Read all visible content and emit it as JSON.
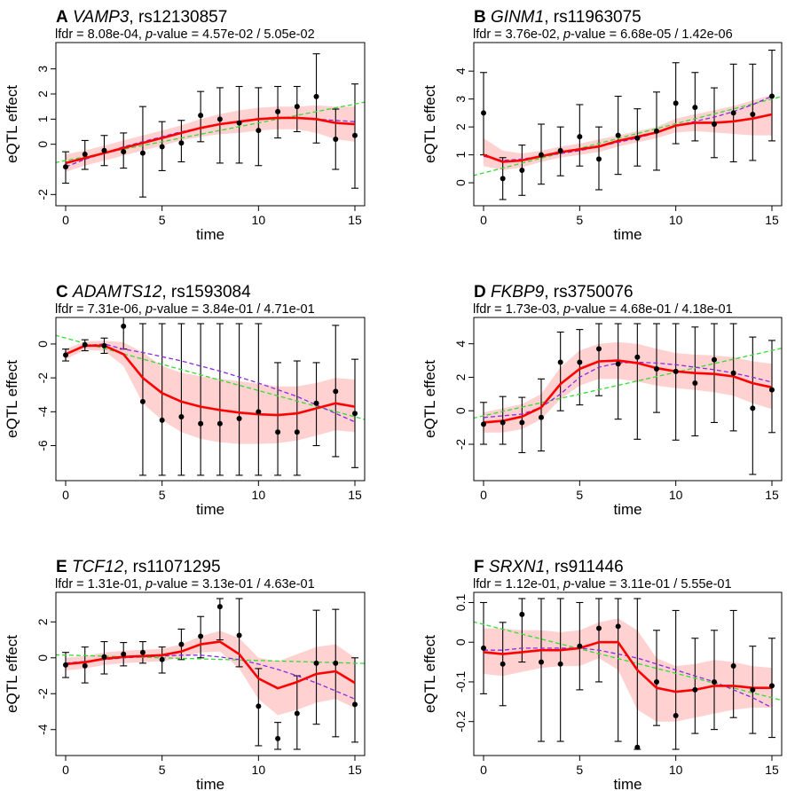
{
  "figure_colors": {
    "smooth": "#ff0000",
    "band": "#ffcccc",
    "linear": "#33dd33",
    "dashed_fit": "#8a2be2",
    "points": "#000000"
  },
  "chart_data": [
    {
      "panel": "A",
      "gene": "VAMP3",
      "snp": "rs12130857",
      "lfdr_label": "lfdr = 8.08e-04, ",
      "p_prefix": "p",
      "p_suffix": "-value = 4.57e-02 / 5.05e-02",
      "type": "scatter",
      "xlabel": "time",
      "ylabel": "eQTL effect",
      "xlim": [
        0,
        15
      ],
      "ylim": [
        -2.2,
        3.8
      ],
      "xticks": [
        0,
        5,
        10,
        15
      ],
      "yticks": [
        -2,
        0,
        1,
        2,
        3
      ],
      "x": [
        0,
        1,
        2,
        3,
        4,
        5,
        6,
        7,
        8,
        9,
        10,
        11,
        12,
        13,
        14,
        15
      ],
      "y": [
        -0.9,
        -0.4,
        -0.25,
        -0.3,
        -0.35,
        -0.1,
        0.05,
        1.15,
        1.0,
        0.85,
        0.55,
        1.3,
        1.5,
        1.9,
        0.2,
        0.35
      ],
      "err_low": [
        -1.55,
        -1.0,
        -0.85,
        -0.95,
        -2.1,
        -1.05,
        -0.7,
        0.1,
        -0.75,
        -0.75,
        -0.85,
        0.25,
        0.5,
        0.05,
        -1.0,
        -1.75
      ],
      "err_high": [
        -0.3,
        0.15,
        0.35,
        0.45,
        1.5,
        0.9,
        0.95,
        2.1,
        2.25,
        2.3,
        2.25,
        2.3,
        2.3,
        3.6,
        1.4,
        2.4
      ],
      "smooth": [
        -0.75,
        -0.55,
        -0.35,
        -0.15,
        0.05,
        0.25,
        0.45,
        0.65,
        0.8,
        0.9,
        1.0,
        1.05,
        1.05,
        1.0,
        0.85,
        0.8
      ],
      "band_low": [
        -1.1,
        -0.85,
        -0.65,
        -0.45,
        -0.25,
        -0.05,
        0.15,
        0.3,
        0.4,
        0.45,
        0.55,
        0.6,
        0.6,
        0.45,
        0.2,
        0.1
      ],
      "band_high": [
        -0.4,
        -0.25,
        -0.05,
        0.15,
        0.35,
        0.55,
        0.75,
        1.0,
        1.2,
        1.35,
        1.45,
        1.5,
        1.5,
        1.55,
        1.5,
        1.5
      ],
      "linear": [
        -0.65,
        1.6
      ],
      "dashed": [
        -0.9,
        -0.6,
        -0.35,
        -0.1,
        0.1,
        0.3,
        0.5,
        0.65,
        0.8,
        0.9,
        1.0,
        1.05,
        1.05,
        1.0,
        0.95,
        0.9
      ]
    },
    {
      "panel": "B",
      "gene": "GINM1",
      "snp": "rs11963075",
      "lfdr_label": "lfdr = 3.76e-02, ",
      "p_prefix": "p",
      "p_suffix": "-value = 6.68e-05 / 1.42e-06",
      "type": "scatter",
      "xlabel": "time",
      "ylabel": "eQTL effect",
      "xlim": [
        0,
        15
      ],
      "ylim": [
        -0.6,
        4.8
      ],
      "xticks": [
        0,
        5,
        10,
        15
      ],
      "yticks": [
        0,
        1,
        2,
        3,
        4
      ],
      "x": [
        0,
        1,
        2,
        3,
        4,
        5,
        6,
        7,
        8,
        9,
        10,
        11,
        12,
        13,
        14,
        15
      ],
      "y": [
        2.5,
        0.15,
        0.45,
        1.0,
        1.15,
        1.65,
        0.85,
        1.7,
        1.6,
        1.85,
        2.85,
        2.7,
        2.1,
        2.5,
        2.45,
        3.1
      ],
      "err_low": [
        1.0,
        -0.6,
        -0.45,
        -0.05,
        0.25,
        0.6,
        -0.25,
        0.3,
        0.6,
        0.45,
        1.4,
        1.5,
        0.9,
        0.75,
        0.8,
        1.5
      ],
      "err_high": [
        3.95,
        0.9,
        1.35,
        2.1,
        2.0,
        2.8,
        2.0,
        3.1,
        2.65,
        3.25,
        4.3,
        3.95,
        3.4,
        4.25,
        4.25,
        4.75
      ],
      "smooth": [
        1.0,
        0.75,
        0.8,
        0.95,
        1.1,
        1.2,
        1.3,
        1.5,
        1.65,
        1.8,
        2.05,
        2.15,
        2.15,
        2.2,
        2.3,
        2.45
      ],
      "band_low": [
        0.6,
        0.45,
        0.55,
        0.75,
        0.9,
        1.0,
        1.1,
        1.3,
        1.45,
        1.6,
        1.8,
        1.85,
        1.8,
        1.75,
        1.7,
        1.7
      ],
      "band_high": [
        1.6,
        1.15,
        1.05,
        1.15,
        1.3,
        1.4,
        1.55,
        1.7,
        1.85,
        2.0,
        2.3,
        2.45,
        2.6,
        2.75,
        2.95,
        3.15
      ],
      "linear": [
        0.35,
        3.0
      ],
      "dashed": [
        0.95,
        0.8,
        0.85,
        0.95,
        1.05,
        1.15,
        1.3,
        1.45,
        1.6,
        1.8,
        2.05,
        2.2,
        2.35,
        2.55,
        2.8,
        3.1
      ]
    },
    {
      "panel": "C",
      "gene": "ADAMTS12",
      "snp": "rs1593084",
      "lfdr_label": "lfdr = 7.31e-06, ",
      "p_prefix": "p",
      "p_suffix": "-value = 3.84e-01 / 4.71e-01",
      "type": "scatter",
      "xlabel": "time",
      "ylabel": "eQTL effect",
      "xlim": [
        0,
        15
      ],
      "ylim": [
        -7.7,
        1.2
      ],
      "xticks": [
        0,
        5,
        10,
        15
      ],
      "yticks": [
        -6,
        -4,
        -2,
        0
      ],
      "x": [
        0,
        1,
        2,
        3,
        4,
        5,
        6,
        7,
        8,
        9,
        10,
        11,
        12,
        13,
        14,
        15
      ],
      "y": [
        -0.65,
        -0.05,
        -0.1,
        1.05,
        -3.4,
        -4.5,
        -4.3,
        -4.7,
        -4.7,
        -4.4,
        -4.0,
        -5.2,
        -5.2,
        -3.5,
        -2.8,
        -4.1
      ],
      "err_low": [
        -1.0,
        -0.4,
        -0.55,
        -0.3,
        -7.75,
        -7.75,
        -7.75,
        -7.75,
        -7.75,
        -7.75,
        -7.75,
        -7.75,
        -7.75,
        -6.0,
        -6.65,
        -7.3
      ],
      "err_high": [
        -0.3,
        0.25,
        0.35,
        2.4,
        1.2,
        1.2,
        1.2,
        1.2,
        1.2,
        1.2,
        1.2,
        -1.1,
        -1.0,
        -1.1,
        1.1,
        -0.9
      ],
      "smooth": [
        -0.6,
        -0.1,
        -0.1,
        -0.6,
        -2.0,
        -2.9,
        -3.4,
        -3.7,
        -3.9,
        -4.05,
        -4.15,
        -4.2,
        -4.1,
        -3.8,
        -3.5,
        -3.7
      ],
      "band_low": [
        -0.9,
        -0.35,
        -0.4,
        -1.3,
        -3.5,
        -4.5,
        -5.2,
        -5.6,
        -5.8,
        -5.9,
        -5.9,
        -5.85,
        -5.7,
        -5.4,
        -5.1,
        -5.2
      ],
      "band_high": [
        -0.3,
        0.15,
        0.2,
        0.1,
        -0.5,
        -1.3,
        -1.7,
        -1.9,
        -2.05,
        -2.2,
        -2.35,
        -2.5,
        -2.5,
        -2.3,
        -2.0,
        -2.1
      ],
      "linear": [
        0.35,
        -4.3
      ],
      "dashed": [
        -0.6,
        -0.1,
        0.0,
        -0.3,
        -0.5,
        -0.75,
        -1.0,
        -1.3,
        -1.6,
        -1.95,
        -2.3,
        -2.7,
        -3.1,
        -3.6,
        -4.1,
        -4.6
      ]
    },
    {
      "panel": "D",
      "gene": "FKBP9",
      "snp": "rs3750076",
      "lfdr_label": "lfdr = 1.73e-03, ",
      "p_prefix": "p",
      "p_suffix": "-value = 4.68e-01 / 4.18e-01",
      "type": "scatter",
      "xlabel": "time",
      "ylabel": "eQTL effect",
      "xlim": [
        0,
        15
      ],
      "ylim": [
        -3.8,
        5.2
      ],
      "xticks": [
        0,
        5,
        10,
        15
      ],
      "yticks": [
        -2,
        0,
        2,
        4
      ],
      "x": [
        0,
        1,
        2,
        3,
        4,
        5,
        6,
        7,
        8,
        9,
        10,
        11,
        12,
        13,
        14,
        15
      ],
      "y": [
        -0.8,
        -0.7,
        -0.7,
        -0.4,
        2.9,
        2.9,
        3.7,
        2.8,
        3.2,
        2.5,
        2.35,
        1.65,
        3.05,
        2.25,
        0.15,
        1.25
      ],
      "err_low": [
        -2.0,
        -2.0,
        -2.5,
        -2.4,
        0.0,
        0.35,
        0.9,
        -0.5,
        -1.7,
        -0.1,
        -1.75,
        -1.5,
        -0.7,
        -1.2,
        -3.8,
        -1.3
      ],
      "err_high": [
        0.5,
        0.85,
        0.8,
        1.9,
        4.7,
        4.85,
        5.2,
        5.2,
        5.2,
        5.2,
        5.2,
        5.0,
        5.2,
        5.2,
        4.4,
        4.2
      ],
      "smooth": [
        -0.7,
        -0.6,
        -0.35,
        0.2,
        1.6,
        2.5,
        2.95,
        3.0,
        2.85,
        2.55,
        2.35,
        2.25,
        2.2,
        2.05,
        1.65,
        1.4
      ],
      "band_low": [
        -1.3,
        -1.3,
        -1.1,
        -0.5,
        0.7,
        1.5,
        1.9,
        1.9,
        1.75,
        1.5,
        1.35,
        1.25,
        1.1,
        0.9,
        0.45,
        0.1
      ],
      "band_high": [
        -0.1,
        0.15,
        0.4,
        1.0,
        2.6,
        3.6,
        4.0,
        4.1,
        4.0,
        3.7,
        3.45,
        3.35,
        3.3,
        3.2,
        2.95,
        2.8
      ],
      "linear": [
        -0.3,
        3.6
      ],
      "dashed": [
        -0.4,
        -0.3,
        -0.2,
        0.2,
        1.0,
        2.0,
        2.6,
        2.85,
        2.9,
        2.85,
        2.75,
        2.6,
        2.45,
        2.25,
        2.0,
        1.7
      ]
    },
    {
      "panel": "E",
      "gene": "TCF12",
      "snp": "rs11071295",
      "lfdr_label": "lfdr = 1.31e-01, ",
      "p_prefix": "p",
      "p_suffix": "-value = 3.13e-01 / 4.63e-01",
      "type": "scatter",
      "xlabel": "time",
      "ylabel": "eQTL effect",
      "xlim": [
        0,
        15
      ],
      "ylim": [
        -5.1,
        3.3
      ],
      "xticks": [
        0,
        5,
        10,
        15
      ],
      "yticks": [
        -4,
        -2,
        0,
        2
      ],
      "x": [
        0,
        1,
        2,
        3,
        4,
        5,
        6,
        7,
        8,
        9,
        10,
        11,
        12,
        13,
        14,
        15
      ],
      "y": [
        -0.4,
        -0.45,
        0.05,
        0.2,
        0.3,
        -0.1,
        0.75,
        1.2,
        2.85,
        1.25,
        -2.7,
        -4.5,
        -3.1,
        -0.3,
        -0.3,
        -2.6
      ],
      "err_low": [
        -1.1,
        -1.4,
        -0.9,
        -0.45,
        -0.3,
        -0.85,
        -0.1,
        0.0,
        1.0,
        -0.5,
        -4.9,
        -5.1,
        -5.1,
        -3.7,
        -4.4,
        -4.7
      ],
      "err_high": [
        0.3,
        0.6,
        0.9,
        0.85,
        0.9,
        0.6,
        1.6,
        2.3,
        3.3,
        3.3,
        -0.6,
        -3.6,
        -1.0,
        2.65,
        2.7,
        0.0
      ],
      "smooth": [
        -0.35,
        -0.25,
        -0.05,
        0.05,
        0.1,
        0.15,
        0.35,
        0.75,
        0.9,
        0.2,
        -1.15,
        -1.7,
        -1.35,
        -0.9,
        -0.75,
        -1.4
      ],
      "band_low": [
        -0.7,
        -0.6,
        -0.4,
        -0.3,
        -0.25,
        -0.2,
        0.0,
        0.3,
        0.35,
        -0.6,
        -2.3,
        -3.2,
        -2.9,
        -2.5,
        -2.3,
        -2.8
      ],
      "band_high": [
        0.0,
        0.1,
        0.3,
        0.4,
        0.45,
        0.5,
        0.75,
        1.2,
        1.5,
        1.1,
        0.0,
        -0.2,
        0.2,
        0.6,
        0.75,
        0.0
      ],
      "linear": [
        0.15,
        -0.3
      ],
      "dashed": [
        -0.3,
        -0.2,
        -0.1,
        0.0,
        0.05,
        0.1,
        0.15,
        0.15,
        0.05,
        -0.1,
        -0.35,
        -0.65,
        -1.0,
        -1.4,
        -1.85,
        -2.3
      ]
    },
    {
      "panel": "F",
      "gene": "SRXN1",
      "snp": "rs911446",
      "lfdr_label": "lfdr = 1.12e-01, ",
      "p_prefix": "p",
      "p_suffix": "-value = 3.11e-01 / 5.55e-01",
      "type": "scatter",
      "xlabel": "time",
      "ylabel": "eQTL effect",
      "xlim": [
        0,
        15
      ],
      "ylim": [
        -0.27,
        0.11
      ],
      "xticks": [
        0,
        5,
        10,
        15
      ],
      "yticks": [
        -0.2,
        -0.1,
        0.0,
        0.1
      ],
      "x": [
        0,
        1,
        2,
        3,
        4,
        5,
        6,
        7,
        8,
        9,
        10,
        11,
        12,
        13,
        14,
        15
      ],
      "y": [
        -0.015,
        -0.055,
        0.07,
        -0.05,
        -0.055,
        -0.01,
        0.035,
        0.04,
        -0.265,
        -0.1,
        -0.185,
        -0.12,
        -0.1,
        -0.06,
        -0.12,
        -0.11
      ],
      "err_low": [
        -0.13,
        -0.16,
        -0.05,
        -0.25,
        -0.25,
        -0.12,
        -0.1,
        -0.25,
        -0.27,
        -0.21,
        -0.27,
        -0.23,
        -0.22,
        -0.19,
        -0.23,
        -0.24
      ],
      "err_high": [
        0.1,
        0.05,
        0.11,
        0.11,
        0.11,
        0.1,
        0.11,
        0.11,
        0.11,
        0.03,
        0.08,
        0.01,
        0.03,
        0.08,
        -0.01,
        0.01
      ],
      "smooth": [
        -0.025,
        -0.03,
        -0.025,
        -0.02,
        -0.02,
        -0.015,
        0.0,
        0.0,
        -0.07,
        -0.115,
        -0.125,
        -0.12,
        -0.11,
        -0.11,
        -0.115,
        -0.115
      ],
      "band_low": [
        -0.08,
        -0.085,
        -0.075,
        -0.065,
        -0.06,
        -0.06,
        -0.04,
        -0.07,
        -0.17,
        -0.2,
        -0.2,
        -0.19,
        -0.18,
        -0.17,
        -0.165,
        -0.165
      ],
      "band_high": [
        0.035,
        0.035,
        0.03,
        0.03,
        0.025,
        0.03,
        0.05,
        0.06,
        0.03,
        -0.04,
        -0.06,
        -0.055,
        -0.045,
        -0.05,
        -0.06,
        -0.065
      ],
      "linear": [
        0.045,
        -0.14
      ],
      "dashed": [
        -0.02,
        -0.02,
        -0.015,
        -0.015,
        -0.015,
        -0.015,
        -0.02,
        -0.03,
        -0.04,
        -0.055,
        -0.07,
        -0.085,
        -0.1,
        -0.12,
        -0.14,
        -0.165
      ]
    }
  ]
}
